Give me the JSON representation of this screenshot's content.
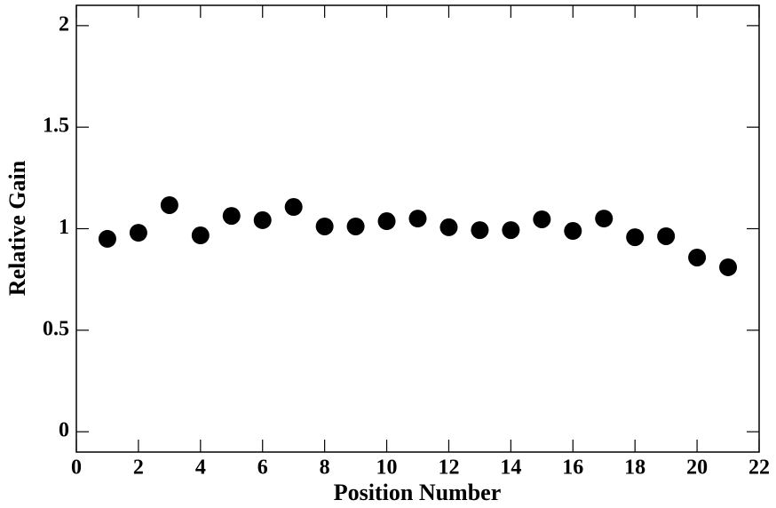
{
  "chart_data": {
    "type": "scatter",
    "xlabel": "Position Number",
    "ylabel": "Relative Gain",
    "series": [
      {
        "color": "#000000",
        "x": [
          1,
          2,
          3,
          4,
          5,
          6,
          7,
          8,
          9,
          10,
          11,
          12,
          13,
          14,
          15,
          16,
          17,
          18,
          19,
          20,
          21
        ],
        "values": [
          0.95,
          0.98,
          1.116,
          0.967,
          1.063,
          1.042,
          1.107,
          1.011,
          1.011,
          1.037,
          1.05,
          1.007,
          0.993,
          0.993,
          1.046,
          0.989,
          1.05,
          0.958,
          0.963,
          0.858,
          0.81
        ]
      }
    ],
    "xlim": [
      0,
      22
    ],
    "xticks": [
      0,
      2,
      4,
      6,
      8,
      10,
      12,
      14,
      16,
      18,
      20,
      22
    ],
    "ylim": [
      -0.1,
      2.1
    ],
    "yticks": [
      0,
      0.5,
      1,
      1.5,
      2
    ],
    "grid": false
  }
}
